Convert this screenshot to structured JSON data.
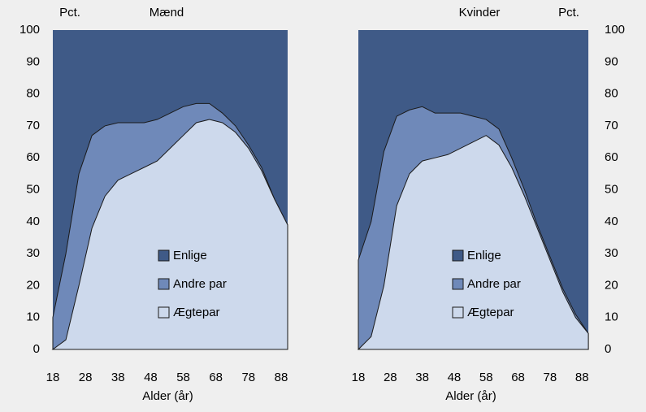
{
  "chart_data": [
    {
      "type": "area",
      "title": "Mænd",
      "y_label": "Pct.",
      "x_label": "Alder (år)",
      "y_axis_side": "left",
      "x": [
        18,
        22,
        26,
        30,
        34,
        38,
        42,
        46,
        50,
        54,
        58,
        62,
        66,
        70,
        74,
        78,
        82,
        86,
        90
      ],
      "series": [
        {
          "name": "Enlige",
          "color": "#3f5a87",
          "values": [
            90,
            70,
            45,
            33,
            30,
            29,
            29,
            29,
            28,
            26,
            24,
            23,
            23,
            26,
            30,
            36,
            43,
            53,
            61
          ]
        },
        {
          "name": "Andre par",
          "color": "#6f89b9",
          "values": [
            10,
            27,
            35,
            29,
            22,
            18,
            16,
            14,
            13,
            11,
            9,
            6,
            5,
            3,
            2,
            1,
            1,
            0,
            0
          ]
        },
        {
          "name": "Ægtepar",
          "color": "#cdd9ec",
          "values": [
            0,
            3,
            20,
            38,
            48,
            53,
            55,
            57,
            59,
            63,
            67,
            71,
            72,
            71,
            68,
            63,
            56,
            47,
            39
          ]
        }
      ],
      "xlim": [
        18,
        91
      ],
      "xticks": [
        18,
        28,
        38,
        48,
        58,
        68,
        78,
        88
      ],
      "ylim": [
        0,
        100
      ],
      "yticks": [
        0,
        10,
        20,
        30,
        40,
        50,
        60,
        70,
        80,
        90,
        100
      ]
    },
    {
      "type": "area",
      "title": "Kvinder",
      "y_label": "Pct.",
      "x_label": "Alder (år)",
      "y_axis_side": "right",
      "x": [
        18,
        22,
        26,
        30,
        34,
        38,
        42,
        46,
        50,
        54,
        58,
        62,
        66,
        70,
        74,
        78,
        82,
        86,
        90
      ],
      "series": [
        {
          "name": "Enlige",
          "color": "#3f5a87",
          "values": [
            72,
            60,
            38,
            27,
            25,
            24,
            26,
            26,
            26,
            27,
            28,
            31,
            40,
            50,
            61,
            71,
            81,
            89,
            95
          ]
        },
        {
          "name": "Andre par",
          "color": "#6f89b9",
          "values": [
            28,
            36,
            42,
            28,
            20,
            17,
            14,
            13,
            11,
            8,
            5,
            5,
            3,
            2,
            1,
            1,
            1,
            1,
            0
          ]
        },
        {
          "name": "Ægtepar",
          "color": "#cdd9ec",
          "values": [
            0,
            4,
            20,
            45,
            55,
            59,
            60,
            61,
            63,
            65,
            67,
            64,
            57,
            48,
            38,
            28,
            18,
            10,
            5
          ]
        }
      ],
      "xlim": [
        18,
        91
      ],
      "xticks": [
        18,
        28,
        38,
        48,
        58,
        68,
        78,
        88
      ],
      "ylim": [
        0,
        100
      ],
      "yticks": [
        0,
        10,
        20,
        30,
        40,
        50,
        60,
        70,
        80,
        90,
        100
      ]
    }
  ]
}
